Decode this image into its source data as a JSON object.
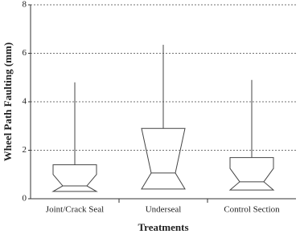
{
  "chart_data": {
    "type": "box",
    "x_label": "Treatments",
    "y_label": "Wheel Path Faulting (mm)",
    "categories": [
      "Joint/Crack Seal",
      "Underseal",
      "Control Section"
    ],
    "boxes": [
      {
        "q1": 0.3,
        "notch_low": 0.3,
        "median": 0.53,
        "notch_high": 1.0,
        "q3": 1.4,
        "whisker_high": 4.8
      },
      {
        "q1": 0.4,
        "notch_low": 0.4,
        "median": 1.06,
        "notch_high": 2.9,
        "q3": 2.9,
        "whisker_high": 6.35
      },
      {
        "q1": 0.36,
        "notch_low": 0.36,
        "median": 0.7,
        "notch_high": 1.25,
        "q3": 1.7,
        "whisker_high": 4.9
      }
    ],
    "ylim": [
      0,
      8
    ],
    "yticks": [
      0,
      2,
      4,
      6,
      8
    ],
    "grid": true,
    "color": "#444444"
  }
}
